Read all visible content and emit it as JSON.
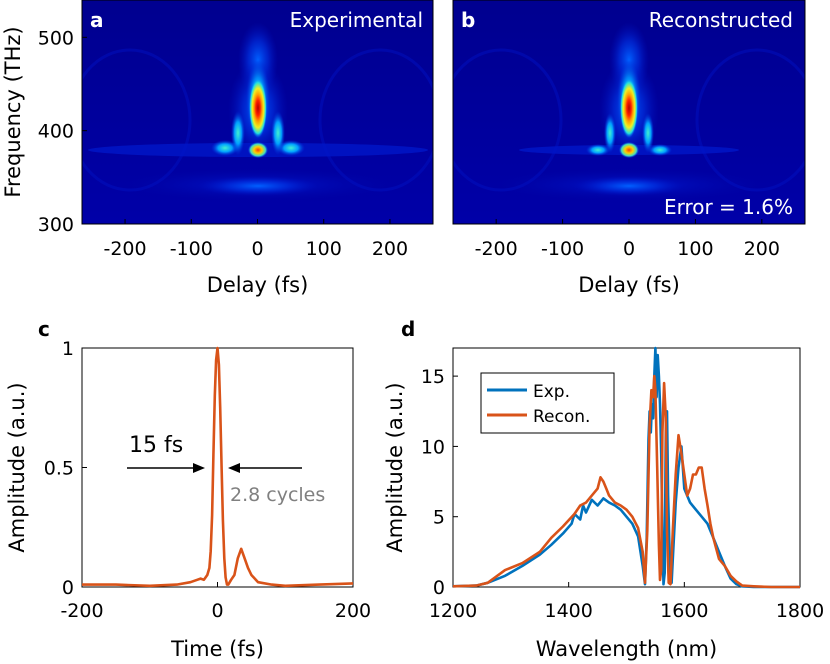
{
  "chart_data": [
    {
      "id": "a",
      "type": "heatmap",
      "panel_label": "a",
      "title": "Experimental",
      "xlabel": "Delay (fs)",
      "ylabel": "Frequency (THz)",
      "xlim": [
        -265,
        265
      ],
      "ylim": [
        300,
        540
      ],
      "xticks": [
        -200,
        -100,
        0,
        100,
        200
      ],
      "yticks": [
        300,
        400,
        500
      ],
      "colormap": "jet",
      "features": {
        "peak": {
          "x": 0,
          "y": 425
        },
        "secondary_band_y": 380,
        "low_band_y": 345
      }
    },
    {
      "id": "b",
      "type": "heatmap",
      "panel_label": "b",
      "title": "Reconstructed",
      "annotation": "Error = 1.6%",
      "xlabel": "Delay (fs)",
      "xlim": [
        -265,
        265
      ],
      "ylim": [
        300,
        540
      ],
      "xticks": [
        -200,
        -100,
        0,
        100,
        200
      ],
      "colormap": "jet",
      "features": {
        "peak": {
          "x": 0,
          "y": 425
        },
        "secondary_band_y": 380,
        "low_band_y": 345
      }
    },
    {
      "id": "c",
      "type": "line",
      "panel_label": "c",
      "xlabel": "Time (fs)",
      "ylabel": "Amplitude (a.u.)",
      "xlim": [
        -200,
        200
      ],
      "ylim": [
        0,
        1
      ],
      "xticks": [
        -200,
        0,
        200
      ],
      "yticks": [
        0,
        0.5,
        1
      ],
      "annotations": {
        "duration": "15 fs",
        "cycles": "2.8 cycles"
      },
      "series": [
        {
          "name": "Recon.",
          "color": "#d95319",
          "x": [
            -200,
            -150,
            -100,
            -60,
            -40,
            -30,
            -25,
            -20,
            -15,
            -12,
            -10,
            -8,
            -6,
            -4,
            -2,
            0,
            2,
            4,
            6,
            8,
            10,
            12,
            14,
            16,
            18,
            20,
            25,
            30,
            35,
            40,
            45,
            50,
            60,
            80,
            100,
            150,
            200
          ],
          "y": [
            0.01,
            0.01,
            0.005,
            0.01,
            0.02,
            0.03,
            0.035,
            0.03,
            0.05,
            0.08,
            0.15,
            0.3,
            0.55,
            0.8,
            0.95,
            1.0,
            0.93,
            0.75,
            0.5,
            0.28,
            0.12,
            0.04,
            0.01,
            0.01,
            0.02,
            0.03,
            0.05,
            0.12,
            0.16,
            0.12,
            0.08,
            0.05,
            0.02,
            0.01,
            0.005,
            0.01,
            0.015
          ]
        }
      ]
    },
    {
      "id": "d",
      "type": "line",
      "panel_label": "d",
      "xlabel": "Wavelength (nm)",
      "ylabel": "Amplitude (a.u.)",
      "xlim": [
        1200,
        1800
      ],
      "ylim": [
        0,
        17
      ],
      "xticks": [
        1200,
        1400,
        1600,
        1800
      ],
      "yticks": [
        0,
        5,
        10,
        15
      ],
      "legend": "top-left",
      "series": [
        {
          "name": "Exp.",
          "color": "#0072bd",
          "x": [
            1200,
            1240,
            1260,
            1290,
            1320,
            1350,
            1370,
            1390,
            1405,
            1410,
            1420,
            1425,
            1430,
            1440,
            1450,
            1460,
            1470,
            1480,
            1490,
            1500,
            1510,
            1520,
            1528,
            1532,
            1535,
            1538,
            1540,
            1542,
            1544,
            1546,
            1548,
            1550,
            1552,
            1554,
            1556,
            1558,
            1560,
            1562,
            1564,
            1566,
            1568,
            1570,
            1572,
            1575,
            1578,
            1580,
            1585,
            1590,
            1595,
            1600,
            1610,
            1620,
            1630,
            1640,
            1650,
            1660,
            1670,
            1680,
            1690,
            1700,
            1720,
            1750,
            1800
          ],
          "y": [
            0.05,
            0.1,
            0.3,
            0.8,
            1.5,
            2.3,
            3,
            3.8,
            4.5,
            5.2,
            4.8,
            5.8,
            5.3,
            6.2,
            5.8,
            6.3,
            6.0,
            5.8,
            5.5,
            5.0,
            4.5,
            3.6,
            1.5,
            0.2,
            3.5,
            10.5,
            12.5,
            11,
            13,
            12,
            15,
            17,
            13.5,
            16.5,
            15,
            13,
            9.5,
            4,
            0.2,
            1,
            11,
            12.5,
            6.5,
            1.5,
            0.3,
            2,
            6.0,
            8.5,
            10.0,
            7.0,
            6.0,
            5.5,
            5.0,
            4.5,
            3.5,
            2.5,
            1.5,
            0.6,
            0.2,
            0.05,
            0,
            0,
            0
          ]
        },
        {
          "name": "Recon.",
          "color": "#d95319",
          "x": [
            1200,
            1240,
            1260,
            1290,
            1320,
            1350,
            1370,
            1390,
            1410,
            1420,
            1430,
            1440,
            1450,
            1455,
            1460,
            1465,
            1470,
            1480,
            1490,
            1500,
            1510,
            1520,
            1528,
            1532,
            1536,
            1540,
            1543,
            1546,
            1548,
            1550,
            1553,
            1556,
            1558,
            1560,
            1562,
            1565,
            1568,
            1570,
            1573,
            1576,
            1580,
            1585,
            1590,
            1595,
            1600,
            1605,
            1610,
            1615,
            1620,
            1625,
            1630,
            1635,
            1640,
            1645,
            1650,
            1660,
            1670,
            1680,
            1690,
            1700,
            1720,
            1750,
            1800
          ],
          "y": [
            0.05,
            0.1,
            0.3,
            1.2,
            1.7,
            2.5,
            3.5,
            4.3,
            5.2,
            5.8,
            6.0,
            6.5,
            7.0,
            7.8,
            7.5,
            7.0,
            6.5,
            6.0,
            5.8,
            5.5,
            5.0,
            4.2,
            2.5,
            0.3,
            4.0,
            11.5,
            14,
            13.5,
            15,
            14,
            8.5,
            3,
            0.5,
            1.2,
            11,
            14.5,
            12,
            4,
            0.3,
            0.2,
            4,
            8,
            10.8,
            9.5,
            8.0,
            6.5,
            7.0,
            8.0,
            8.0,
            8.5,
            8.5,
            7.0,
            5.8,
            4.5,
            3.5,
            2.0,
            1.5,
            0.8,
            0.4,
            0.1,
            0.05,
            0,
            0
          ]
        }
      ]
    }
  ]
}
